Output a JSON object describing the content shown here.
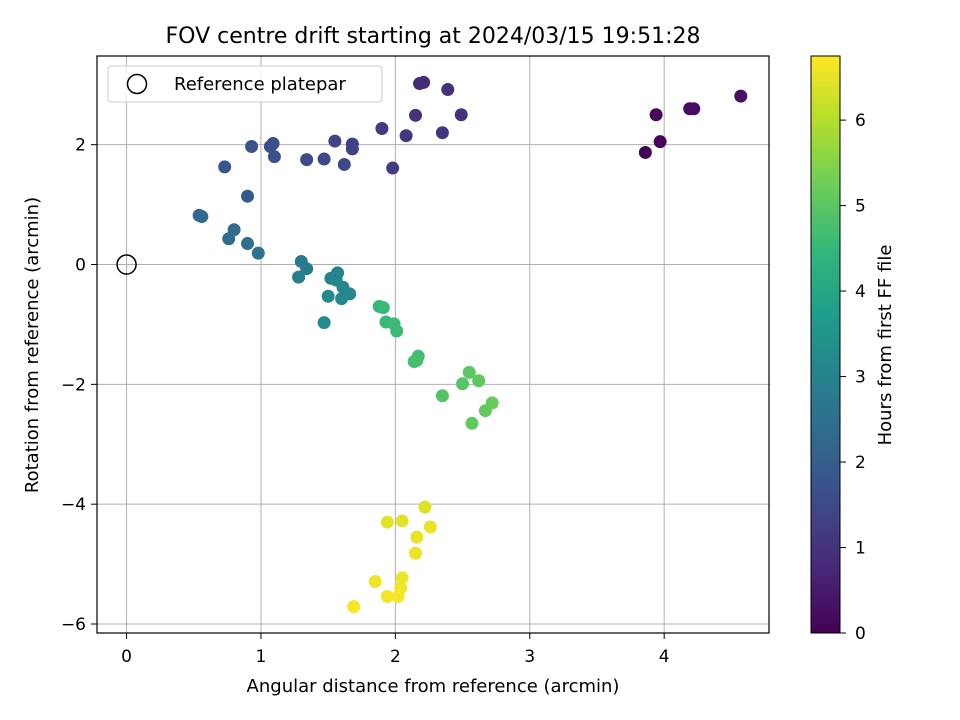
{
  "chart_data": {
    "type": "scatter",
    "title": "FOV centre drift starting at 2024/03/15 19:51:28",
    "xlabel": "Angular distance from reference (arcmin)",
    "ylabel": "Rotation from reference (arcmin)",
    "xlim": [
      -0.22,
      4.78
    ],
    "ylim": [
      -6.15,
      3.48
    ],
    "xticks": [
      0,
      1,
      2,
      3,
      4
    ],
    "yticks": [
      -6,
      -4,
      -2,
      0,
      2
    ],
    "grid": true,
    "legend": {
      "position": "top-left",
      "entries": [
        "Reference platepar"
      ]
    },
    "reference_point": {
      "x": 0,
      "y": 0,
      "label": "Reference platepar"
    },
    "colorbar": {
      "label": "Hours from first FF file",
      "colormap": "viridis",
      "min": 0,
      "max": 6.75,
      "ticks": [
        0,
        1,
        2,
        3,
        4,
        5,
        6
      ]
    },
    "colormap_stops": [
      "#440154",
      "#482878",
      "#3e4989",
      "#31688e",
      "#26828e",
      "#1f9e89",
      "#35b779",
      "#6ece58",
      "#b5de2b",
      "#fde725"
    ],
    "points": [
      {
        "x": 3.86,
        "y": 1.87,
        "h": 0.05
      },
      {
        "x": 3.97,
        "y": 2.05,
        "h": 0.1
      },
      {
        "x": 3.94,
        "y": 2.5,
        "h": 0.15
      },
      {
        "x": 4.19,
        "y": 2.6,
        "h": 0.2
      },
      {
        "x": 4.22,
        "y": 2.6,
        "h": 0.25
      },
      {
        "x": 4.57,
        "y": 2.81,
        "h": 0.3
      },
      {
        "x": 2.18,
        "y": 3.02,
        "h": 0.8
      },
      {
        "x": 2.21,
        "y": 3.04,
        "h": 0.85
      },
      {
        "x": 2.39,
        "y": 2.92,
        "h": 0.9
      },
      {
        "x": 2.49,
        "y": 2.5,
        "h": 0.95
      },
      {
        "x": 2.15,
        "y": 2.49,
        "h": 1.0
      },
      {
        "x": 2.35,
        "y": 2.2,
        "h": 1.05
      },
      {
        "x": 2.08,
        "y": 2.15,
        "h": 1.1
      },
      {
        "x": 1.9,
        "y": 2.27,
        "h": 1.15
      },
      {
        "x": 1.98,
        "y": 1.61,
        "h": 1.2
      },
      {
        "x": 1.68,
        "y": 2.01,
        "h": 1.3
      },
      {
        "x": 1.68,
        "y": 1.93,
        "h": 1.35
      },
      {
        "x": 1.55,
        "y": 2.06,
        "h": 1.4
      },
      {
        "x": 1.62,
        "y": 1.67,
        "h": 1.45
      },
      {
        "x": 1.47,
        "y": 1.76,
        "h": 1.5
      },
      {
        "x": 1.34,
        "y": 1.75,
        "h": 1.55
      },
      {
        "x": 1.09,
        "y": 2.02,
        "h": 1.6
      },
      {
        "x": 1.07,
        "y": 1.97,
        "h": 1.65
      },
      {
        "x": 1.1,
        "y": 1.8,
        "h": 1.7
      },
      {
        "x": 0.93,
        "y": 1.97,
        "h": 1.75
      },
      {
        "x": 0.73,
        "y": 1.63,
        "h": 1.8
      },
      {
        "x": 0.9,
        "y": 1.14,
        "h": 1.9
      },
      {
        "x": 0.54,
        "y": 0.82,
        "h": 2.2
      },
      {
        "x": 0.56,
        "y": 0.8,
        "h": 2.25
      },
      {
        "x": 0.8,
        "y": 0.58,
        "h": 2.35
      },
      {
        "x": 0.76,
        "y": 0.43,
        "h": 2.4
      },
      {
        "x": 0.9,
        "y": 0.35,
        "h": 2.45
      },
      {
        "x": 0.98,
        "y": 0.19,
        "h": 2.55
      },
      {
        "x": 1.3,
        "y": 0.05,
        "h": 2.75
      },
      {
        "x": 1.34,
        "y": -0.07,
        "h": 2.8
      },
      {
        "x": 1.28,
        "y": -0.21,
        "h": 2.85
      },
      {
        "x": 1.57,
        "y": -0.14,
        "h": 3.0
      },
      {
        "x": 1.52,
        "y": -0.23,
        "h": 3.05
      },
      {
        "x": 1.56,
        "y": -0.26,
        "h": 3.05
      },
      {
        "x": 1.61,
        "y": -0.38,
        "h": 3.1
      },
      {
        "x": 1.66,
        "y": -0.49,
        "h": 3.15
      },
      {
        "x": 1.6,
        "y": -0.57,
        "h": 3.15
      },
      {
        "x": 1.5,
        "y": -0.53,
        "h": 3.2
      },
      {
        "x": 1.47,
        "y": -0.97,
        "h": 3.25
      },
      {
        "x": 1.88,
        "y": -0.7,
        "h": 4.5
      },
      {
        "x": 1.91,
        "y": -0.72,
        "h": 4.55
      },
      {
        "x": 1.93,
        "y": -0.96,
        "h": 4.55
      },
      {
        "x": 1.99,
        "y": -0.99,
        "h": 4.6
      },
      {
        "x": 2.01,
        "y": -1.11,
        "h": 4.6
      },
      {
        "x": 2.17,
        "y": -1.53,
        "h": 4.7
      },
      {
        "x": 2.14,
        "y": -1.62,
        "h": 4.7
      },
      {
        "x": 2.16,
        "y": -1.6,
        "h": 4.75
      },
      {
        "x": 2.35,
        "y": -2.19,
        "h": 4.9
      },
      {
        "x": 2.5,
        "y": -1.99,
        "h": 4.95
      },
      {
        "x": 2.55,
        "y": -1.8,
        "h": 5.0
      },
      {
        "x": 2.62,
        "y": -1.94,
        "h": 5.05
      },
      {
        "x": 2.57,
        "y": -2.65,
        "h": 5.1
      },
      {
        "x": 2.67,
        "y": -2.44,
        "h": 5.1
      },
      {
        "x": 2.72,
        "y": -2.31,
        "h": 5.15
      },
      {
        "x": 2.22,
        "y": -4.05,
        "h": 6.4
      },
      {
        "x": 2.05,
        "y": -4.28,
        "h": 6.45
      },
      {
        "x": 1.94,
        "y": -4.3,
        "h": 6.45
      },
      {
        "x": 2.26,
        "y": -4.38,
        "h": 6.5
      },
      {
        "x": 2.16,
        "y": -4.55,
        "h": 6.5
      },
      {
        "x": 2.15,
        "y": -4.82,
        "h": 6.55
      },
      {
        "x": 2.05,
        "y": -5.23,
        "h": 6.55
      },
      {
        "x": 1.85,
        "y": -5.29,
        "h": 6.6
      },
      {
        "x": 2.04,
        "y": -5.4,
        "h": 6.6
      },
      {
        "x": 1.94,
        "y": -5.54,
        "h": 6.65
      },
      {
        "x": 2.02,
        "y": -5.54,
        "h": 6.65
      },
      {
        "x": 1.69,
        "y": -5.71,
        "h": 6.7
      }
    ]
  }
}
